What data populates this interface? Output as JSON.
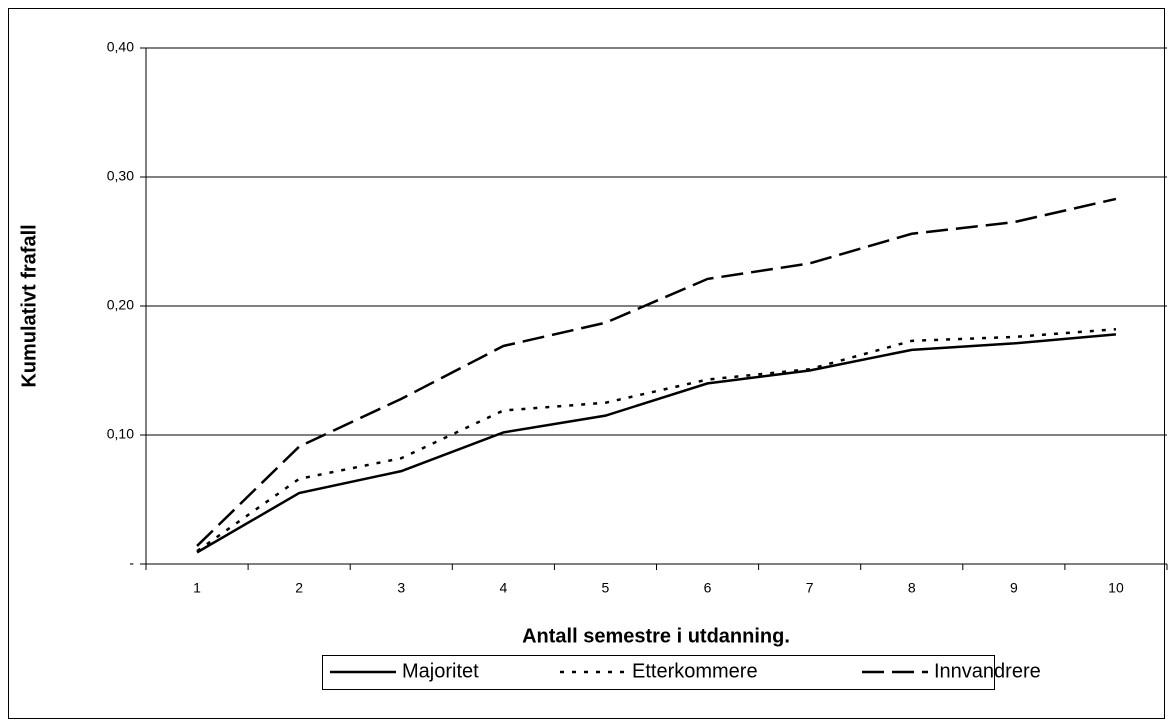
{
  "chart_data": {
    "type": "line",
    "x_label": "Antall semestre i utdanning.",
    "y_label": "Kumulativt frafall",
    "categories": [
      "1",
      "2",
      "3",
      "4",
      "5",
      "6",
      "7",
      "8",
      "9",
      "10"
    ],
    "series": [
      {
        "name": "Majoritet",
        "color": "#000000",
        "dash": "solid",
        "values": [
          0.009,
          0.055,
          0.072,
          0.102,
          0.115,
          0.14,
          0.15,
          0.166,
          0.171,
          0.178
        ]
      },
      {
        "name": "Etterkommere",
        "color": "#000000",
        "dash": "dotted",
        "values": [
          0.01,
          0.066,
          0.082,
          0.119,
          0.125,
          0.143,
          0.151,
          0.173,
          0.176,
          0.182
        ]
      },
      {
        "name": "Innvandrere",
        "color": "#000000",
        "dash": "dashed",
        "values": [
          0.014,
          0.091,
          0.128,
          0.169,
          0.187,
          0.221,
          0.233,
          0.256,
          0.265,
          0.283
        ]
      }
    ],
    "ylim": [
      0,
      0.4
    ],
    "yticks": [
      {
        "value": 0,
        "label": "-"
      },
      {
        "value": 0.1,
        "label": "0,10"
      },
      {
        "value": 0.2,
        "label": "0,20"
      },
      {
        "value": 0.3,
        "label": "0,30"
      },
      {
        "value": 0.4,
        "label": "0,40"
      }
    ],
    "grid": true,
    "legend": "bottom"
  }
}
